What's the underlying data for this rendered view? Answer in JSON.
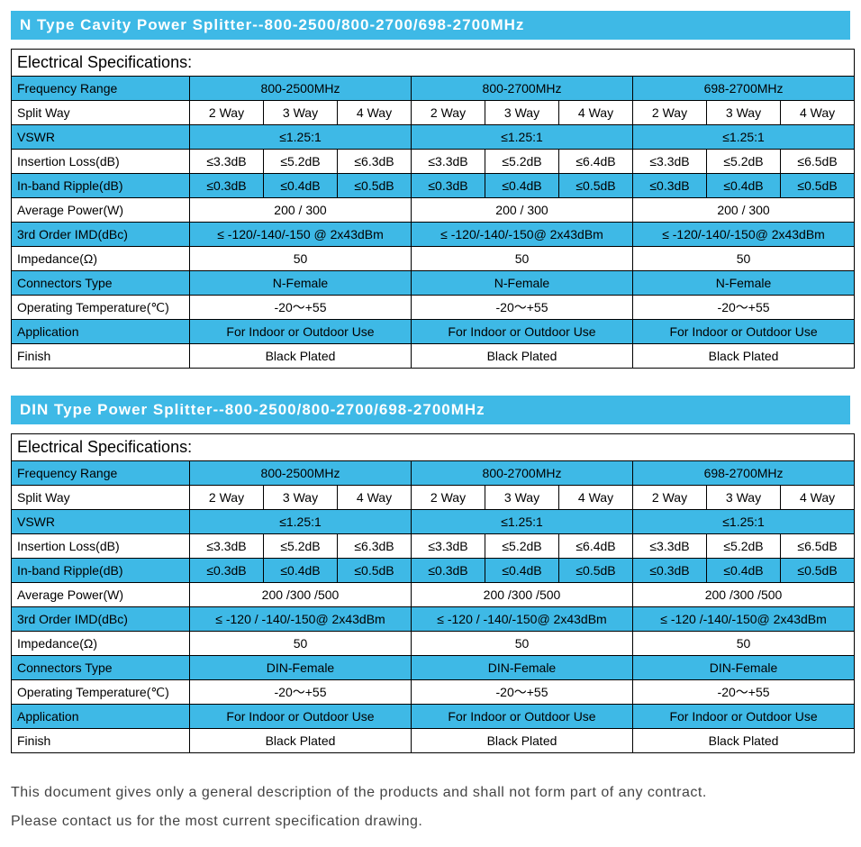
{
  "colors": {
    "header_bg": "#3eb9e6",
    "header_text": "#ffffff",
    "border": "#000000",
    "row_blue": "#3eb9e6",
    "row_white": "#ffffff"
  },
  "tables": [
    {
      "title": "N Type Cavity Power Splitter--800-2500/800-2700/698-2700MHz",
      "section_header": "Electrical Specifications:",
      "freq_ranges": [
        "800-2500MHz",
        "800-2700MHz",
        "698-2700MHz"
      ],
      "rows": [
        {
          "label": "Frequency Range",
          "style": "blue",
          "span3": [
            "800-2500MHz",
            "800-2700MHz",
            "698-2700MHz"
          ]
        },
        {
          "label": "Split Way",
          "style": "white",
          "cells": [
            "2 Way",
            "3 Way",
            "4 Way",
            "2 Way",
            "3 Way",
            "4 Way",
            "2 Way",
            "3 Way",
            "4 Way"
          ]
        },
        {
          "label": "VSWR",
          "style": "blue",
          "span3": [
            "≤1.25:1",
            "≤1.25:1",
            "≤1.25:1"
          ]
        },
        {
          "label": "Insertion Loss(dB)",
          "style": "white",
          "cells": [
            "≤3.3dB",
            "≤5.2dB",
            "≤6.3dB",
            "≤3.3dB",
            "≤5.2dB",
            "≤6.4dB",
            "≤3.3dB",
            "≤5.2dB",
            "≤6.5dB"
          ]
        },
        {
          "label": "In-band Ripple(dB)",
          "style": "blue",
          "cells": [
            "≤0.3dB",
            "≤0.4dB",
            "≤0.5dB",
            "≤0.3dB",
            "≤0.4dB",
            "≤0.5dB",
            "≤0.3dB",
            "≤0.4dB",
            "≤0.5dB"
          ]
        },
        {
          "label": "Average Power(W)",
          "style": "white",
          "span3": [
            "200 / 300",
            "200 / 300",
            "200 / 300"
          ]
        },
        {
          "label": "3rd Order IMD(dBc)",
          "style": "blue",
          "span3": [
            "≤ -120/-140/-150 @ 2x43dBm",
            "≤ -120/-140/-150@ 2x43dBm",
            "≤ -120/-140/-150@ 2x43dBm"
          ]
        },
        {
          "label": "Impedance(Ω)",
          "style": "white",
          "span3": [
            "50",
            "50",
            "50"
          ]
        },
        {
          "label": "Connectors Type",
          "style": "blue",
          "span3": [
            "N-Female",
            "N-Female",
            "N-Female"
          ]
        },
        {
          "label": "Operating Temperature(℃)",
          "style": "white",
          "span3": [
            "-20～+55",
            "-20～+55",
            "-20～+55"
          ]
        },
        {
          "label": "Application",
          "style": "blue",
          "span3": [
            "For Indoor or Outdoor Use",
            "For Indoor or Outdoor Use",
            "For Indoor or Outdoor Use"
          ]
        },
        {
          "label": "Finish",
          "style": "white",
          "span3": [
            "Black Plated",
            "Black Plated",
            "Black Plated"
          ]
        }
      ]
    },
    {
      "title": "DIN Type Power Splitter--800-2500/800-2700/698-2700MHz",
      "section_header": "Electrical Specifications:",
      "freq_ranges": [
        "800-2500MHz",
        "800-2700MHz",
        "698-2700MHz"
      ],
      "rows": [
        {
          "label": "Frequency Range",
          "style": "blue",
          "span3": [
            "800-2500MHz",
            "800-2700MHz",
            "698-2700MHz"
          ]
        },
        {
          "label": "Split Way",
          "style": "white",
          "cells": [
            "2 Way",
            "3 Way",
            "4 Way",
            "2 Way",
            "3 Way",
            "4 Way",
            "2 Way",
            "3 Way",
            "4 Way"
          ]
        },
        {
          "label": "VSWR",
          "style": "blue",
          "span3": [
            "≤1.25:1",
            "≤1.25:1",
            "≤1.25:1"
          ]
        },
        {
          "label": "Insertion Loss(dB)",
          "style": "white",
          "cells": [
            "≤3.3dB",
            "≤5.2dB",
            "≤6.3dB",
            "≤3.3dB",
            "≤5.2dB",
            "≤6.4dB",
            "≤3.3dB",
            "≤5.2dB",
            "≤6.5dB"
          ]
        },
        {
          "label": "In-band Ripple(dB)",
          "style": "blue",
          "cells": [
            "≤0.3dB",
            "≤0.4dB",
            "≤0.5dB",
            "≤0.3dB",
            "≤0.4dB",
            "≤0.5dB",
            "≤0.3dB",
            "≤0.4dB",
            "≤0.5dB"
          ]
        },
        {
          "label": "Average Power(W)",
          "style": "white",
          "span3": [
            "200 /300 /500",
            "200 /300 /500",
            "200 /300 /500"
          ]
        },
        {
          "label": "3rd Order IMD(dBc)",
          "style": "blue",
          "span3": [
            "≤ -120 / -140/-150@ 2x43dBm",
            "≤ -120 / -140/-150@ 2x43dBm",
            "≤ -120 /-140/-150@ 2x43dBm"
          ]
        },
        {
          "label": "Impedance(Ω)",
          "style": "white",
          "span3": [
            "50",
            "50",
            "50"
          ]
        },
        {
          "label": "Connectors Type",
          "style": "blue",
          "span3": [
            "DIN-Female",
            "DIN-Female",
            "DIN-Female"
          ]
        },
        {
          "label": "Operating Temperature(℃)",
          "style": "white",
          "span3": [
            "-20～+55",
            "-20～+55",
            "-20～+55"
          ]
        },
        {
          "label": "Application",
          "style": "blue",
          "span3": [
            "For Indoor or Outdoor Use",
            "For Indoor or Outdoor Use",
            "For Indoor or Outdoor Use"
          ]
        },
        {
          "label": "Finish",
          "style": "white",
          "span3": [
            "Black Plated",
            "Black Plated",
            "Black Plated"
          ]
        }
      ]
    }
  ],
  "footer": {
    "line1": "This document gives only a general description of the products and shall not form part of any contract.",
    "line2": "Please contact us for the most current specification drawing."
  }
}
